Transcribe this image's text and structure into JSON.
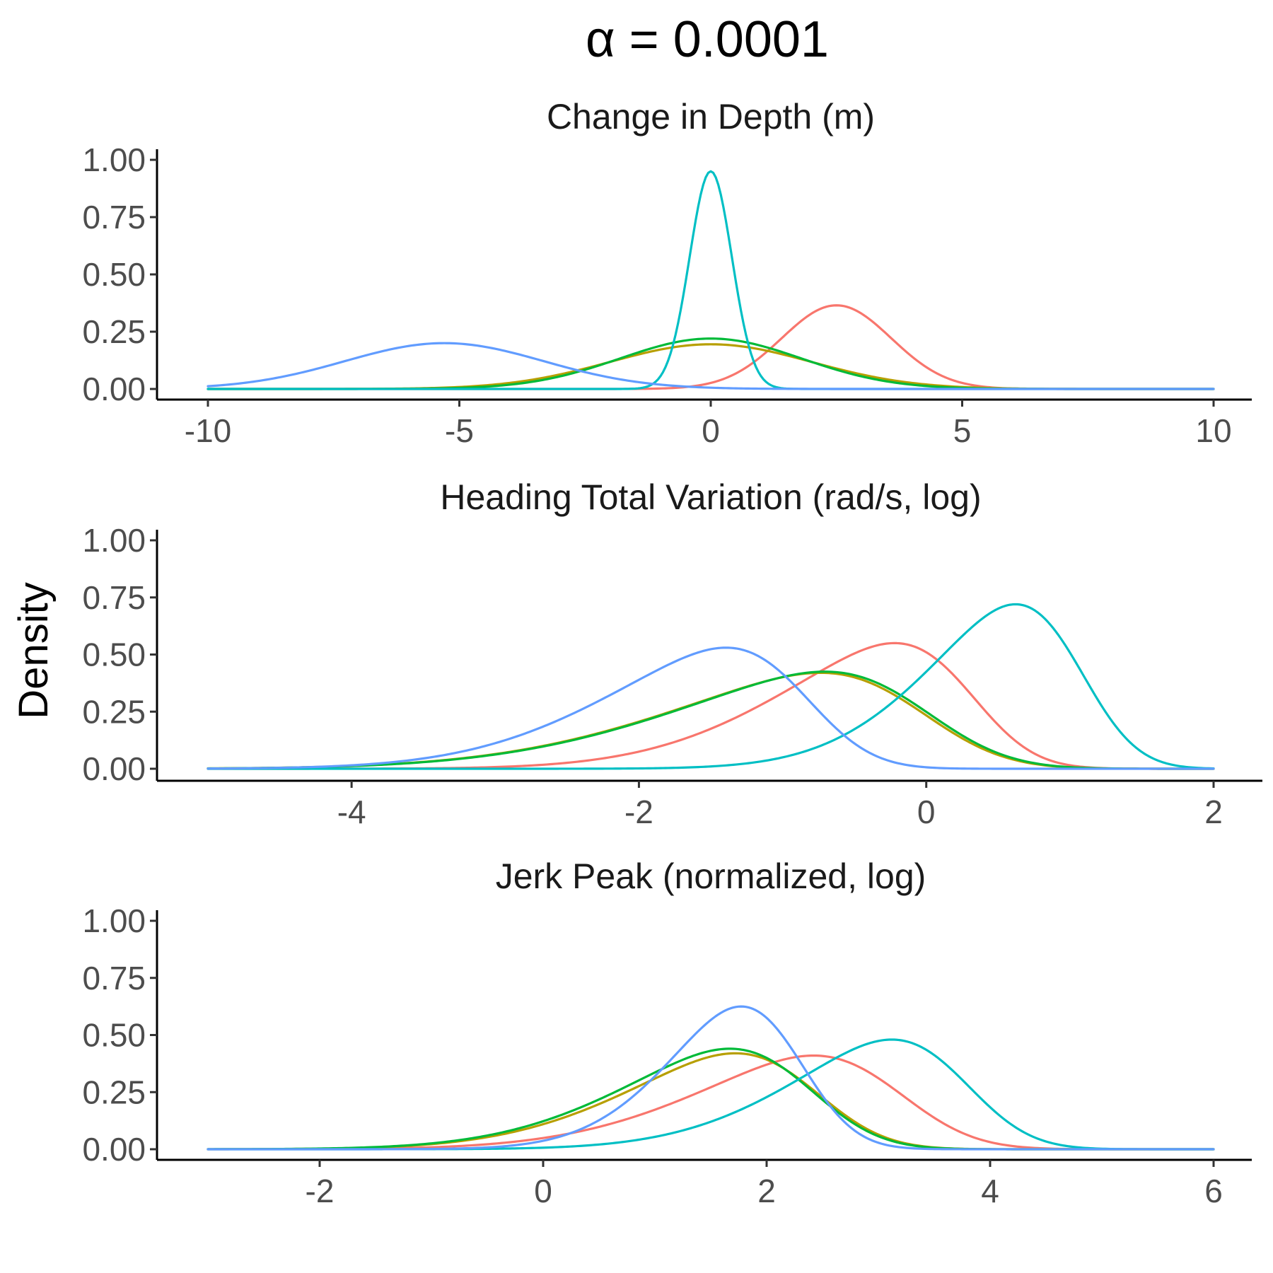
{
  "title": "α = 0.0001",
  "ylabel": "Density",
  "colors": {
    "red": "#F8766D",
    "olive": "#B79F00",
    "green": "#00BA38",
    "cyan": "#00BFC4",
    "blue": "#619CFF"
  },
  "chart_data": [
    {
      "type": "line",
      "title": "Change in Depth (m)",
      "xlabel": "",
      "ylabel": "Density",
      "xlim": [
        -10,
        10
      ],
      "ylim": [
        0,
        1
      ],
      "x_ticks": [
        "-10",
        "-5",
        "0",
        "5",
        "10"
      ],
      "y_ticks": [
        "0.00",
        "0.25",
        "0.50",
        "0.75",
        "1.00"
      ],
      "grid": false,
      "legend": "none",
      "series": [
        {
          "color": "#F8766D",
          "distribution": "normal",
          "mean": 2.5,
          "sd": 1.09,
          "peak": 0.365
        },
        {
          "color": "#B79F00",
          "distribution": "normal",
          "mean": 0.0,
          "sd": 2.0,
          "peak": 0.195
        },
        {
          "color": "#00BA38",
          "distribution": "normal",
          "mean": 0.0,
          "sd": 1.8,
          "peak": 0.22
        },
        {
          "color": "#00BFC4",
          "distribution": "normal",
          "mean": 0.0,
          "sd": 0.42,
          "peak": 0.95
        },
        {
          "color": "#619CFF",
          "distribution": "normal",
          "mean": -5.3,
          "sd": 1.98,
          "peak": 0.2
        }
      ]
    },
    {
      "type": "line",
      "title": "Heading Total Variation (rad/s, log)",
      "xlabel": "",
      "ylabel": "Density",
      "xlim": [
        -5,
        2
      ],
      "ylim": [
        0,
        1
      ],
      "x_ticks": [
        "-4",
        "-2",
        "0",
        "2"
      ],
      "y_ticks": [
        "0.00",
        "0.25",
        "0.50",
        "0.75",
        "1.00"
      ],
      "grid": false,
      "legend": "none",
      "series": [
        {
          "color": "#F8766D",
          "distribution": "skew-normal",
          "location": 0.3,
          "scale": 1.1,
          "shape": -3,
          "peak": 0.55
        },
        {
          "color": "#B79F00",
          "distribution": "skew-normal",
          "location": -0.05,
          "scale": 1.45,
          "shape": -3,
          "peak": 0.42
        },
        {
          "color": "#00BA38",
          "distribution": "skew-normal",
          "location": -0.02,
          "scale": 1.45,
          "shape": -3,
          "peak": 0.425
        },
        {
          "color": "#00BFC4",
          "distribution": "skew-normal",
          "location": 1.05,
          "scale": 0.85,
          "shape": -2.5,
          "peak": 0.72
        },
        {
          "color": "#619CFF",
          "distribution": "skew-normal",
          "location": -0.85,
          "scale": 1.15,
          "shape": -3,
          "peak": 0.53
        }
      ]
    },
    {
      "type": "line",
      "title": "Jerk Peak (normalized, log)",
      "xlabel": "",
      "ylabel": "Density",
      "xlim": [
        -3,
        6
      ],
      "ylim": [
        0,
        1
      ],
      "x_ticks": [
        "-2",
        "0",
        "2",
        "4",
        "6"
      ],
      "y_ticks": [
        "0.00",
        "0.25",
        "0.50",
        "0.75",
        "1.00"
      ],
      "grid": false,
      "legend": "none",
      "series": [
        {
          "color": "#F8766D",
          "distribution": "skew-normal",
          "location": 3.15,
          "scale": 1.45,
          "shape": -2.5,
          "peak": 0.41
        },
        {
          "color": "#B79F00",
          "distribution": "skew-normal",
          "location": 2.4,
          "scale": 1.35,
          "shape": -2.5,
          "peak": 0.42
        },
        {
          "color": "#00BA38",
          "distribution": "skew-normal",
          "location": 2.35,
          "scale": 1.35,
          "shape": -2.5,
          "peak": 0.44
        },
        {
          "color": "#00BFC4",
          "distribution": "skew-normal",
          "location": 3.75,
          "scale": 1.25,
          "shape": -2.5,
          "peak": 0.48
        },
        {
          "color": "#619CFF",
          "distribution": "skew-normal",
          "location": 2.25,
          "scale": 0.9,
          "shape": -2,
          "peak": 0.625
        }
      ]
    }
  ]
}
